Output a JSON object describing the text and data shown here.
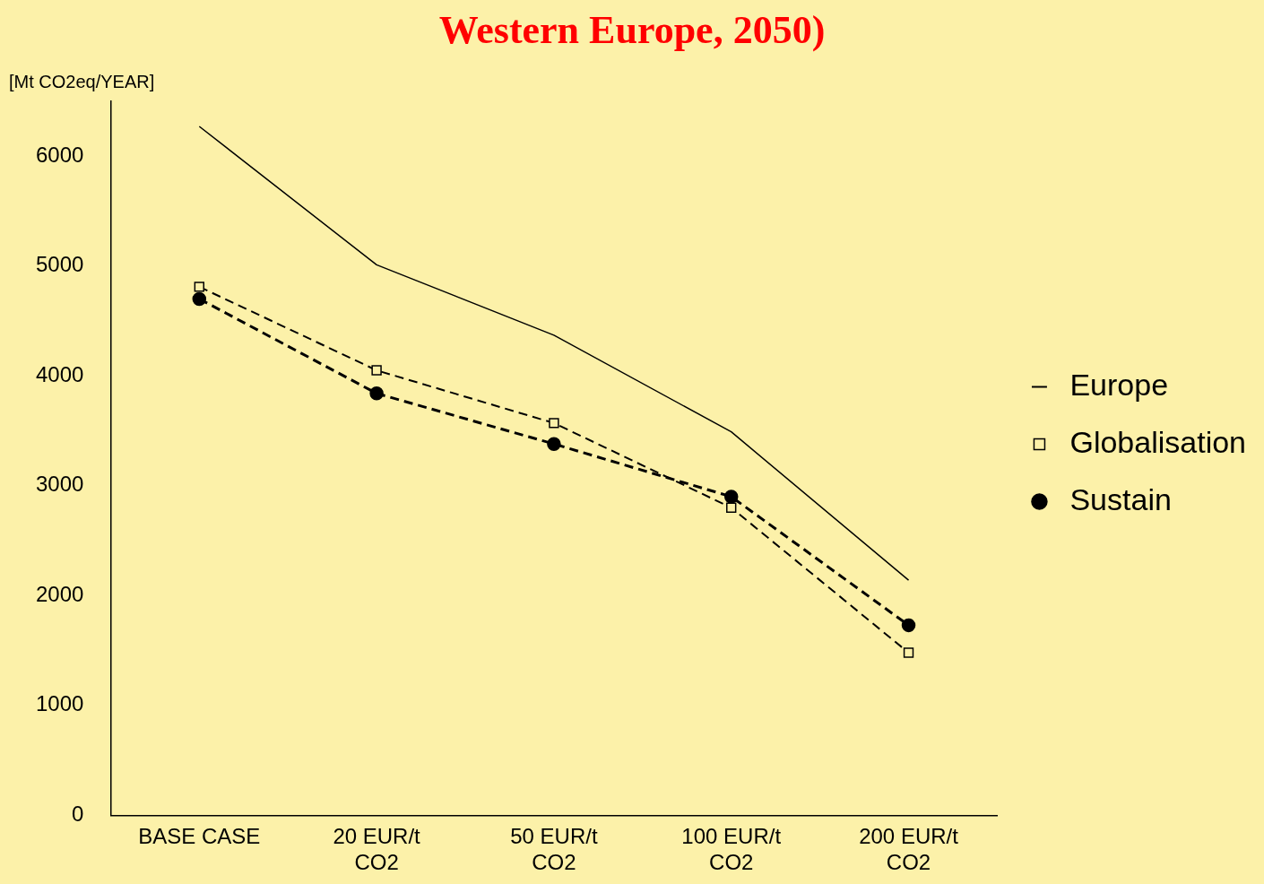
{
  "chart_data": {
    "type": "line",
    "title": "Western Europe, 2050)",
    "ylabel": "[Mt CO2eq/YEAR]",
    "categories": [
      "BASE CASE",
      "20 EUR/t\nCO2",
      "50 EUR/t\nCO2",
      "100 EUR/t\nCO2",
      "200 EUR/t\nCO2"
    ],
    "series": [
      {
        "name": "Europe",
        "color": "#000000",
        "values": [
          6270,
          5010,
          4370,
          3490,
          2140
        ],
        "marker": "none",
        "line_style": "solid"
      },
      {
        "name": "Globalisation",
        "color": "#000000",
        "values": [
          4810,
          4050,
          3570,
          2800,
          1480
        ],
        "marker": "square",
        "line_style": "dashed"
      },
      {
        "name": "Sustain",
        "color": "#000000",
        "values": [
          4700,
          3840,
          3380,
          2900,
          1730
        ],
        "marker": "circle",
        "line_style": "dashed"
      }
    ],
    "ylim": [
      0,
      6500
    ],
    "yticks": [
      0,
      1000,
      2000,
      3000,
      4000,
      5000,
      6000
    ],
    "grid": false,
    "legend": "right"
  }
}
